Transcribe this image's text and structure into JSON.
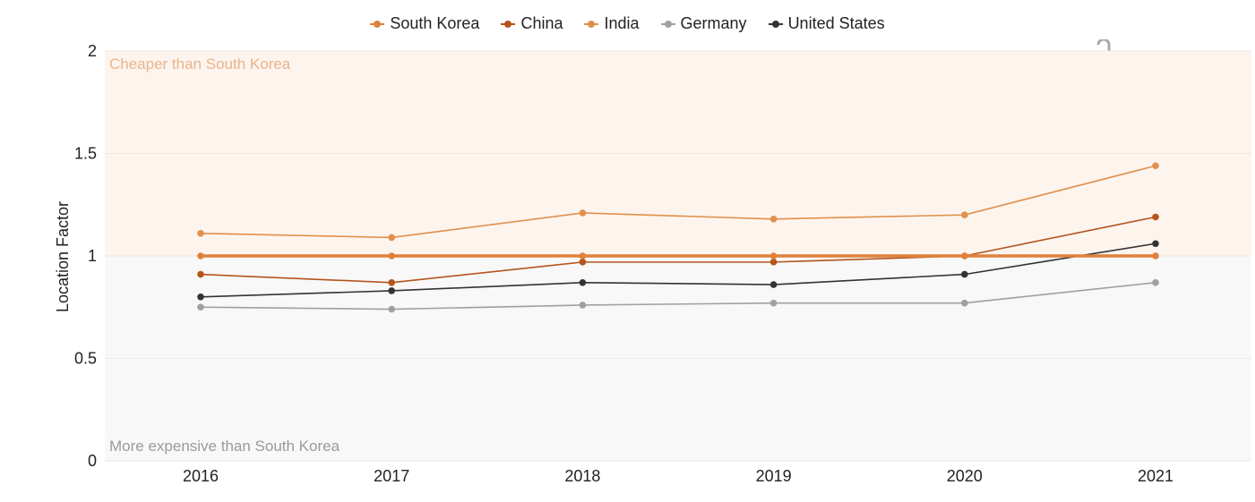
{
  "legend": [
    {
      "name": "South Korea",
      "color": "#e0813a"
    },
    {
      "name": "China",
      "color": "#b5541d"
    },
    {
      "name": "India",
      "color": "#e0904c"
    },
    {
      "name": "Germany",
      "color": "#a0a0a0"
    },
    {
      "name": "United States",
      "color": "#333333"
    }
  ],
  "logo": {
    "text": "intratec"
  },
  "regions": {
    "upper_label": "Cheaper than South Korea",
    "lower_label": "More expensive than South Korea",
    "upper_color": "#fdf4ee",
    "lower_color": "#f8f8f8",
    "upper_text_color": "#e8b48c",
    "lower_text_color": "#9a9a9a"
  },
  "chart_data": {
    "type": "line",
    "ylabel": "Location Factor",
    "xlabel": "",
    "ylim": [
      0,
      2
    ],
    "yticks": [
      0,
      0.5,
      1,
      1.5,
      2
    ],
    "ytick_labels": [
      "0",
      "0.5",
      "1",
      "1.5",
      "2"
    ],
    "categories": [
      "2016",
      "2017",
      "2018",
      "2019",
      "2020",
      "2021"
    ],
    "grid": true,
    "legend_position": "top",
    "series": [
      {
        "name": "India",
        "color": "#e0904c",
        "width": 1.6,
        "values": [
          1.11,
          1.09,
          1.21,
          1.18,
          1.2,
          1.44
        ]
      },
      {
        "name": "China",
        "color": "#b5541d",
        "width": 1.6,
        "values": [
          0.91,
          0.87,
          0.97,
          0.97,
          1.0,
          1.19
        ]
      },
      {
        "name": "United States",
        "color": "#333333",
        "width": 1.6,
        "values": [
          0.8,
          0.83,
          0.87,
          0.86,
          0.91,
          1.06
        ]
      },
      {
        "name": "Germany",
        "color": "#a0a0a0",
        "width": 1.6,
        "values": [
          0.75,
          0.74,
          0.76,
          0.77,
          0.77,
          0.87
        ]
      },
      {
        "name": "South Korea",
        "color": "#e0813a",
        "width": 3.5,
        "values": [
          1.0,
          1.0,
          1.0,
          1.0,
          1.0,
          1.0
        ]
      }
    ]
  }
}
